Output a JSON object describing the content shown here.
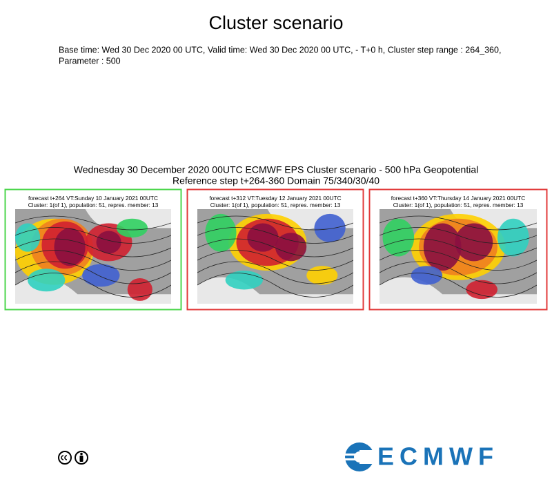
{
  "header": {
    "title": "Cluster scenario",
    "description": [
      "Base time: Wed 30 Dec 2020 00 UTC, Valid time: Wed 30 Dec 2020 00 UTC, - T+0 h, Cluster step range : 264_360,",
      "Parameter : 500"
    ]
  },
  "figure": {
    "title": [
      "Wednesday 30 December 2020 00UTC ECMWF EPS Cluster scenario - 500 hPa Geopotential",
      "Reference step t+264-360 Domain 75/340/30/40"
    ],
    "panels": [
      {
        "lines": [
          "forecast t+264 VT:Sunday 10 January 2021 00UTC",
          "Cluster: 1(of 1), population: 51, repres. member: 13"
        ]
      },
      {
        "lines": [
          "forecast t+312 VT:Tuesday 12 January 2021 00UTC",
          "Cluster: 1(of 1), population: 51, repres. member: 13"
        ]
      },
      {
        "lines": [
          "forecast t+360 VT:Thursday 14 January 2021 00UTC",
          "Cluster: 1(of 1), population: 51, repres. member: 13"
        ]
      }
    ]
  },
  "footer": {
    "logo": "ECMWF"
  }
}
